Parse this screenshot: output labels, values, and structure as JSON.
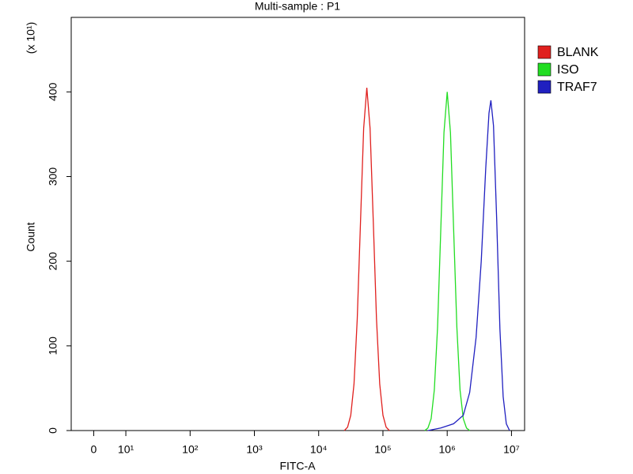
{
  "chart_data": {
    "type": "line",
    "title": "Multi-sample : P1",
    "xlabel": "FITC-A",
    "ylabel": "Count",
    "ylabel_multiplier": "(x 10¹)",
    "xscale": "biexponential",
    "xlim": [
      -7,
      16000000
    ],
    "xticks": [
      0,
      {
        "value": 10,
        "label": "10¹"
      },
      {
        "value": 100,
        "label": "10²"
      },
      {
        "value": 1000,
        "label": "10³"
      },
      {
        "value": 10000,
        "label": "10⁴"
      },
      {
        "value": 100000,
        "label": "10⁵"
      },
      {
        "value": 1000000,
        "label": "10⁶"
      },
      {
        "value": 10000000,
        "label": "10⁷"
      }
    ],
    "ylim": [
      0,
      488
    ],
    "yticks": [
      0,
      100,
      200,
      300,
      400
    ],
    "legend": "right",
    "series": [
      {
        "name": "BLANK",
        "color": "#e0201e",
        "x": [
          25100,
          28200,
          31600,
          35500,
          39800,
          44700,
          50100,
          56200,
          63100,
          70800,
          79400,
          89100,
          100000,
          112200,
          125900
        ],
        "values": [
          0,
          4,
          18,
          55,
          132,
          246,
          357,
          405,
          357,
          246,
          132,
          55,
          18,
          4,
          0
        ]
      },
      {
        "name": "ISO",
        "color": "#22dd22",
        "x": [
          446700,
          501200,
          562300,
          631000,
          707900,
          794300,
          891300,
          1000000,
          1122000,
          1259000,
          1413000,
          1585000,
          1778000,
          1995000,
          2239000
        ],
        "values": [
          0,
          3,
          14,
          48,
          122,
          238,
          352,
          400,
          352,
          238,
          122,
          48,
          14,
          3,
          0
        ]
      },
      {
        "name": "TRAF7",
        "color": "#2020c0",
        "x": [
          501200,
          794300,
          1259000,
          1778000,
          2239000,
          2818000,
          3388000,
          3981000,
          4467000,
          4786000,
          5248000,
          5888000,
          6607000,
          7413000,
          8318000,
          9333000
        ],
        "values": [
          0,
          3,
          8,
          18,
          45,
          110,
          200,
          310,
          375,
          390,
          360,
          250,
          120,
          40,
          8,
          0
        ]
      }
    ]
  }
}
